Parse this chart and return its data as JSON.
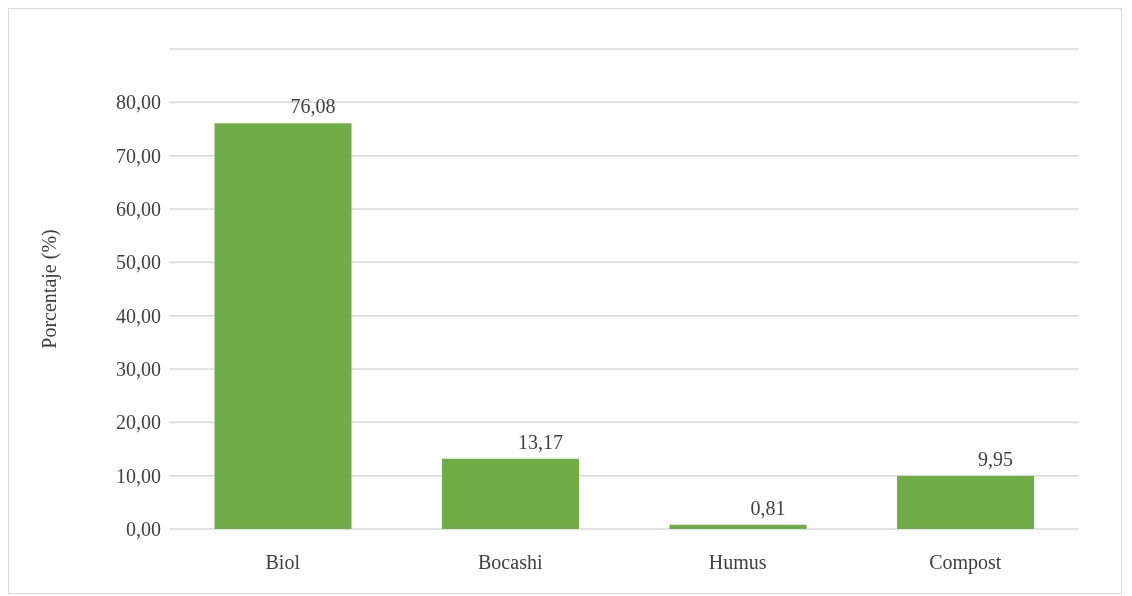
{
  "chart_data": {
    "type": "bar",
    "ylabel": "Porcentaje (%)",
    "categories": [
      "Biol",
      "Bocashi",
      "Humus",
      "Compost"
    ],
    "values": [
      76.08,
      13.17,
      0.81,
      9.95
    ],
    "value_labels": [
      "76,08",
      "13,17",
      "0,81",
      "9,95"
    ],
    "color": "#70ad47",
    "ylim": [
      0,
      90
    ],
    "yticks": [
      {
        "value": 0,
        "label": "0,00"
      },
      {
        "value": 10,
        "label": "10,00"
      },
      {
        "value": 20,
        "label": "20,00"
      },
      {
        "value": 30,
        "label": "30,00"
      },
      {
        "value": 40,
        "label": "40,00"
      },
      {
        "value": 50,
        "label": "50,00"
      },
      {
        "value": 60,
        "label": "60,00"
      },
      {
        "value": 70,
        "label": "70,00"
      },
      {
        "value": 80,
        "label": "80,00"
      },
      {
        "value": 90,
        "label": null
      }
    ],
    "grid": "y"
  }
}
